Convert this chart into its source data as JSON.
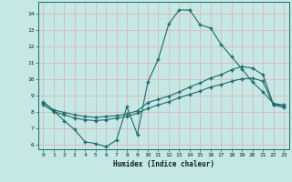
{
  "xlabel": "Humidex (Indice chaleur)",
  "xlim": [
    -0.5,
    23.5
  ],
  "ylim": [
    5.7,
    14.7
  ],
  "yticks": [
    6,
    7,
    8,
    9,
    10,
    11,
    12,
    13,
    14
  ],
  "xticks": [
    0,
    1,
    2,
    3,
    4,
    5,
    6,
    7,
    8,
    9,
    10,
    11,
    12,
    13,
    14,
    15,
    16,
    17,
    18,
    19,
    20,
    21,
    22,
    23
  ],
  "bg_color": "#c5e8e5",
  "grid_color": "#d8b8b8",
  "line_color": "#1a6b6b",
  "line1_x": [
    0,
    1,
    2,
    3,
    4,
    5,
    6,
    7,
    8,
    9,
    10,
    11,
    12,
    13,
    14,
    15,
    16,
    17,
    18,
    19,
    20,
    21,
    22,
    23
  ],
  "line1_y": [
    8.6,
    8.05,
    7.45,
    6.9,
    6.15,
    6.05,
    5.85,
    6.25,
    8.3,
    6.6,
    9.8,
    11.2,
    13.35,
    14.2,
    14.2,
    13.3,
    13.1,
    12.1,
    11.35,
    10.6,
    9.8,
    9.2,
    8.5,
    8.4
  ],
  "line2_x": [
    0,
    1,
    2,
    3,
    4,
    5,
    6,
    7,
    8,
    9,
    10,
    11,
    12,
    13,
    14,
    15,
    16,
    17,
    18,
    19,
    20,
    21,
    22,
    23
  ],
  "line2_y": [
    8.55,
    8.1,
    7.95,
    7.8,
    7.7,
    7.65,
    7.7,
    7.75,
    7.85,
    8.05,
    8.55,
    8.75,
    8.95,
    9.2,
    9.5,
    9.75,
    10.05,
    10.25,
    10.55,
    10.75,
    10.65,
    10.25,
    8.45,
    8.35
  ],
  "line3_x": [
    0,
    1,
    2,
    3,
    4,
    5,
    6,
    7,
    8,
    9,
    10,
    11,
    12,
    13,
    14,
    15,
    16,
    17,
    18,
    19,
    20,
    21,
    22,
    23
  ],
  "line3_y": [
    8.4,
    8.0,
    7.8,
    7.6,
    7.5,
    7.45,
    7.5,
    7.6,
    7.7,
    7.9,
    8.2,
    8.4,
    8.6,
    8.85,
    9.05,
    9.25,
    9.5,
    9.65,
    9.85,
    10.0,
    10.05,
    9.85,
    8.4,
    8.25
  ]
}
